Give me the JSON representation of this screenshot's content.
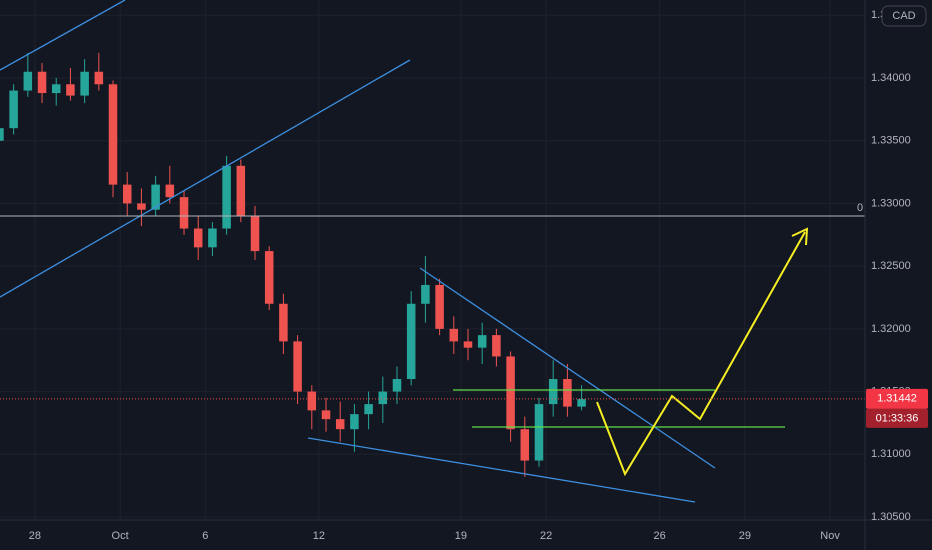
{
  "chart_data": {
    "type": "candlestick",
    "currency": "CAD",
    "x": [
      -1.25,
      -0.75,
      -0.25,
      0.25,
      0.75,
      1.25,
      1.75,
      2.25,
      2.75,
      3.25,
      3.75,
      4.25,
      4.75,
      5.25,
      5.75,
      6.25,
      6.75,
      7.25,
      7.75,
      8.25,
      8.75,
      9.25,
      9.75,
      10.25,
      10.75,
      11.25,
      11.75,
      12.25,
      12.75,
      13.25,
      13.75,
      14.25,
      14.75,
      15.25,
      15.75,
      16.25,
      16.75,
      17.25,
      17.75,
      18.25,
      18.75,
      19.25
    ],
    "open": [
      1.335,
      1.336,
      1.339,
      1.3405,
      1.3388,
      1.3395,
      1.3386,
      1.3405,
      1.3395,
      1.3315,
      1.33,
      1.3295,
      1.3315,
      1.3305,
      1.328,
      1.3265,
      1.328,
      1.333,
      1.329,
      1.3262,
      1.322,
      1.319,
      1.315,
      1.3135,
      1.3128,
      1.312,
      1.3132,
      1.314,
      1.315,
      1.316,
      1.322,
      1.3235,
      1.32,
      1.319,
      1.3185,
      1.3195,
      1.3178,
      1.312,
      1.3095,
      1.314,
      1.316,
      1.3138
    ],
    "high": [
      1.3365,
      1.3395,
      1.342,
      1.3412,
      1.34,
      1.3408,
      1.3415,
      1.342,
      1.3398,
      1.3325,
      1.3312,
      1.3322,
      1.333,
      1.331,
      1.329,
      1.3285,
      1.3338,
      1.3335,
      1.3298,
      1.3266,
      1.3228,
      1.3195,
      1.3155,
      1.3145,
      1.3142,
      1.314,
      1.315,
      1.3162,
      1.317,
      1.323,
      1.3258,
      1.324,
      1.321,
      1.32,
      1.3205,
      1.32,
      1.3182,
      1.313,
      1.3145,
      1.3175,
      1.3172,
      1.3155
    ],
    "low": [
      1.3342,
      1.3355,
      1.3385,
      1.338,
      1.3378,
      1.3382,
      1.338,
      1.339,
      1.3305,
      1.329,
      1.3282,
      1.329,
      1.33,
      1.3275,
      1.3255,
      1.3258,
      1.3275,
      1.3285,
      1.3255,
      1.3215,
      1.318,
      1.314,
      1.312,
      1.3118,
      1.311,
      1.3102,
      1.312,
      1.3125,
      1.314,
      1.3155,
      1.3205,
      1.3195,
      1.318,
      1.3175,
      1.3172,
      1.317,
      1.311,
      1.3082,
      1.309,
      1.313,
      1.313,
      1.3135
    ],
    "close": [
      1.336,
      1.339,
      1.3405,
      1.3388,
      1.3395,
      1.3386,
      1.3405,
      1.3395,
      1.3315,
      1.33,
      1.3295,
      1.3315,
      1.3305,
      1.328,
      1.3265,
      1.328,
      1.333,
      1.329,
      1.3262,
      1.322,
      1.319,
      1.315,
      1.3135,
      1.3128,
      1.312,
      1.3132,
      1.314,
      1.315,
      1.316,
      1.322,
      1.3235,
      1.32,
      1.319,
      1.3185,
      1.3195,
      1.3178,
      1.312,
      1.3095,
      1.314,
      1.316,
      1.3138,
      1.3144
    ],
    "up_color": "#26a69a",
    "down_color": "#ef5350",
    "xlim": [
      -1.23,
      29.23
    ],
    "xticks": [
      {
        "value": 0,
        "label": "28"
      },
      {
        "value": 3,
        "label": "Oct"
      },
      {
        "value": 6,
        "label": "6"
      },
      {
        "value": 10,
        "label": "12"
      },
      {
        "value": 15,
        "label": "19"
      },
      {
        "value": 18,
        "label": "22"
      },
      {
        "value": 22,
        "label": "26"
      },
      {
        "value": 25,
        "label": "29"
      },
      {
        "value": 28,
        "label": "Nov"
      }
    ],
    "ylim": [
      1.30476,
      1.34622
    ],
    "yticks": [
      {
        "value": 1.305,
        "label": "1.30500"
      },
      {
        "value": 1.31,
        "label": "1.31000"
      },
      {
        "value": 1.315,
        "label": "1.31500"
      },
      {
        "value": 1.32,
        "label": "1.32000"
      },
      {
        "value": 1.325,
        "label": "1.32500"
      },
      {
        "value": 1.33,
        "label": "1.33000"
      },
      {
        "value": 1.335,
        "label": "1.33500"
      },
      {
        "value": 1.34,
        "label": "1.34000"
      },
      {
        "value": 1.345,
        "label": "1.34500"
      }
    ],
    "grid": true,
    "hline": {
      "value": 1.329,
      "label": "0"
    },
    "last_price": 1.31442,
    "countdown": "01:33:36"
  }
}
